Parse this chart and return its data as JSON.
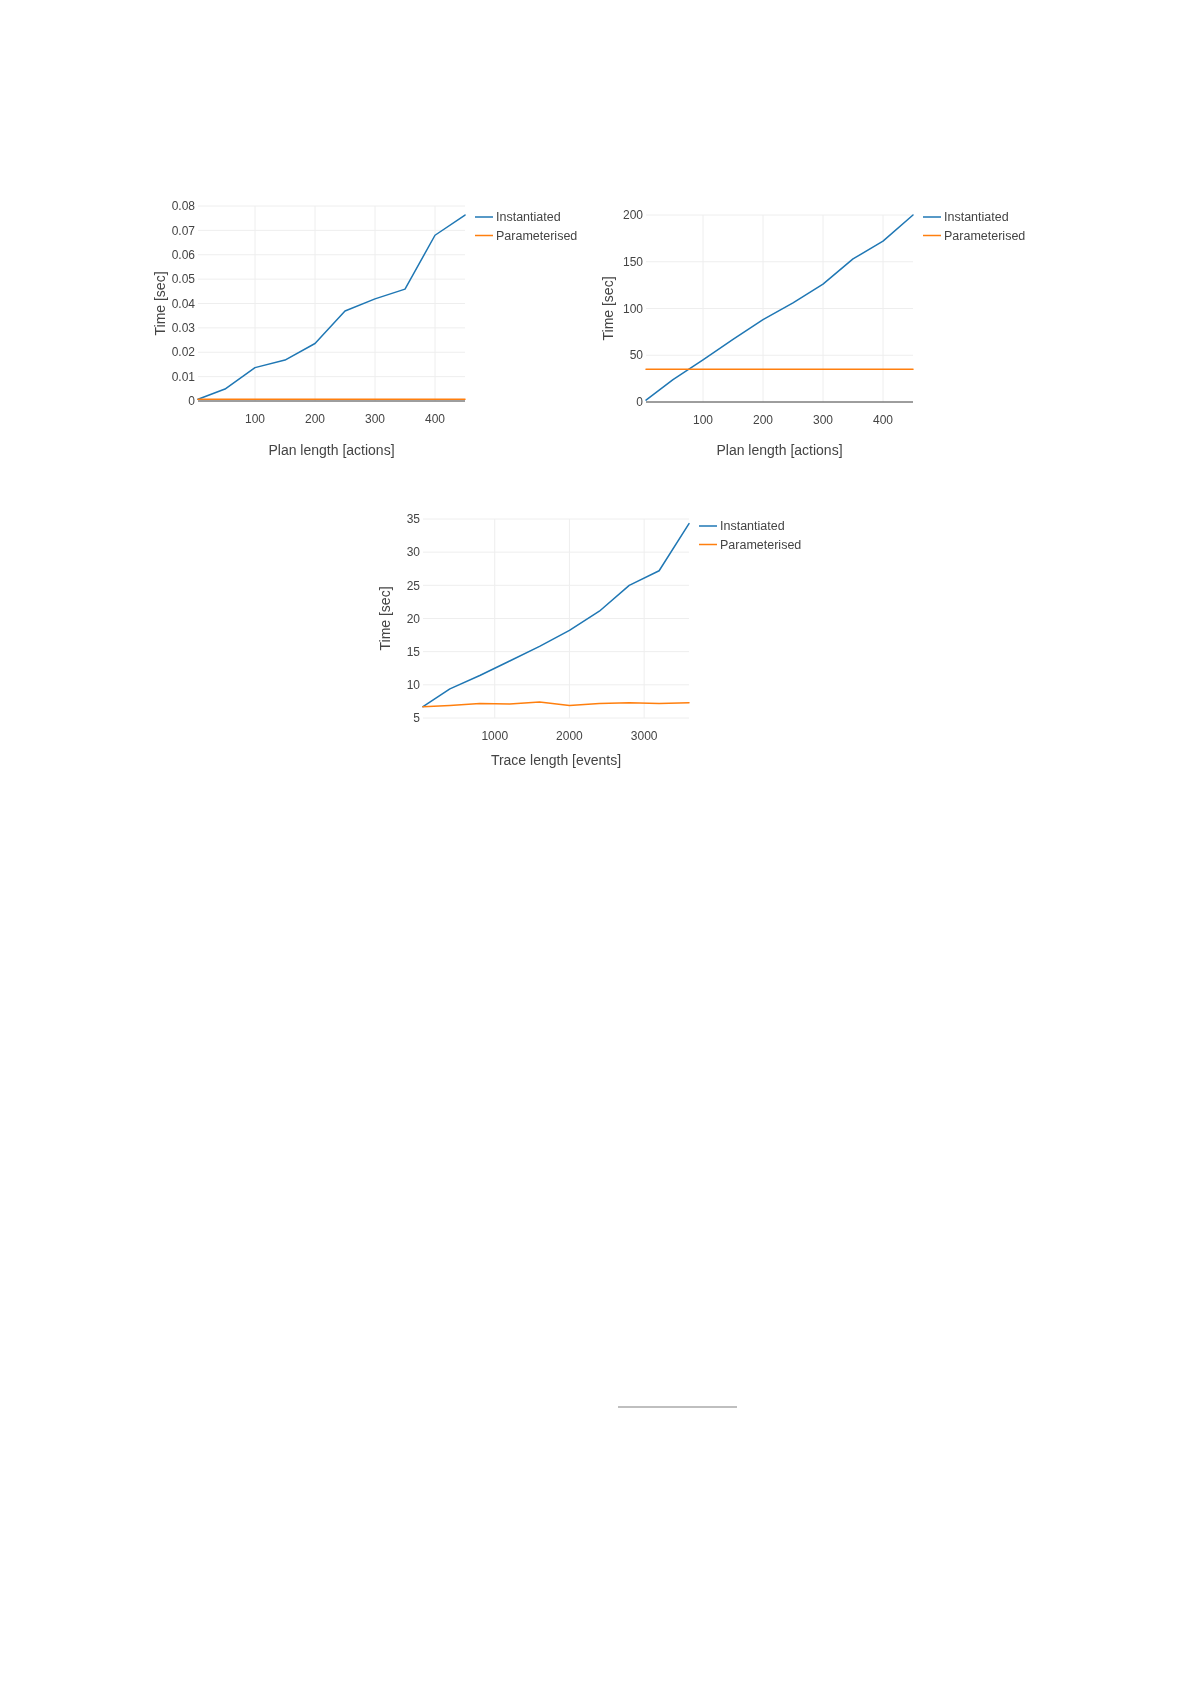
{
  "chart_data": [
    {
      "type": "line",
      "xlabel": "Plan length [actions]",
      "ylabel": "Time [sec]",
      "xlim": [
        5,
        450
      ],
      "xticks": [
        100,
        200,
        300,
        400
      ],
      "ylim": [
        0,
        0.08
      ],
      "yticks": [
        0,
        0.01,
        0.02,
        0.03,
        0.04,
        0.05,
        0.06,
        0.07,
        0.08
      ],
      "grid": true,
      "legend": "top right",
      "series": [
        {
          "name": "Instantiated",
          "color": "#1f77b4",
          "x": [
            5,
            50,
            100,
            150,
            200,
            250,
            300,
            350,
            400,
            450
          ],
          "values": [
            0.0007,
            0.0049,
            0.0137,
            0.0168,
            0.0236,
            0.0369,
            0.0419,
            0.0459,
            0.068,
            0.0763
          ]
        },
        {
          "name": "Parameterised",
          "color": "#ff7f0e",
          "x": [
            5,
            50,
            100,
            150,
            200,
            250,
            300,
            350,
            400,
            450
          ],
          "values": [
            0.0007,
            0.0007,
            0.0007,
            0.0007,
            0.0007,
            0.0007,
            0.0007,
            0.0007,
            0.0007,
            0.0007
          ]
        }
      ]
    },
    {
      "type": "line",
      "xlabel": "Plan length [actions]",
      "ylabel": "Time [sec]",
      "xlim": [
        5,
        450
      ],
      "xticks": [
        100,
        200,
        300,
        400
      ],
      "ylim": [
        0,
        200
      ],
      "yticks": [
        0,
        50,
        100,
        150,
        200
      ],
      "grid": true,
      "legend": "top right",
      "series": [
        {
          "name": "Instantiated",
          "color": "#1f77b4",
          "x": [
            5,
            50,
            100,
            150,
            200,
            250,
            300,
            350,
            400,
            450
          ],
          "values": [
            2,
            24,
            45,
            67,
            88,
            106,
            126,
            153,
            172,
            200
          ]
        },
        {
          "name": "Parameterised",
          "color": "#ff7f0e",
          "x": [
            5,
            50,
            100,
            150,
            200,
            250,
            300,
            350,
            400,
            450
          ],
          "values": [
            35,
            35,
            35,
            35,
            35,
            35,
            35,
            35,
            35,
            35
          ]
        }
      ]
    },
    {
      "type": "line",
      "xlabel": "Trace length [events]",
      "ylabel": "Time [sec]",
      "xlim": [
        40,
        3600
      ],
      "xticks": [
        1000,
        2000,
        3000
      ],
      "ylim": [
        5,
        35
      ],
      "yticks": [
        5,
        10,
        15,
        20,
        25,
        30,
        35
      ],
      "grid": true,
      "legend": "top right",
      "series": [
        {
          "name": "Instantiated",
          "color": "#1f77b4",
          "x": [
            40,
            400,
            800,
            1200,
            1600,
            2000,
            2400,
            2800,
            3200,
            3600
          ],
          "values": [
            6.7,
            9.4,
            11.4,
            13.6,
            15.8,
            18.2,
            21.1,
            25.0,
            27.2,
            34.3
          ]
        },
        {
          "name": "Parameterised",
          "color": "#ff7f0e",
          "x": [
            40,
            400,
            800,
            1200,
            1600,
            2000,
            2400,
            2800,
            3200,
            3600
          ],
          "values": [
            6.7,
            6.9,
            7.2,
            7.1,
            7.4,
            6.9,
            7.2,
            7.3,
            7.2,
            7.3
          ]
        }
      ]
    }
  ]
}
